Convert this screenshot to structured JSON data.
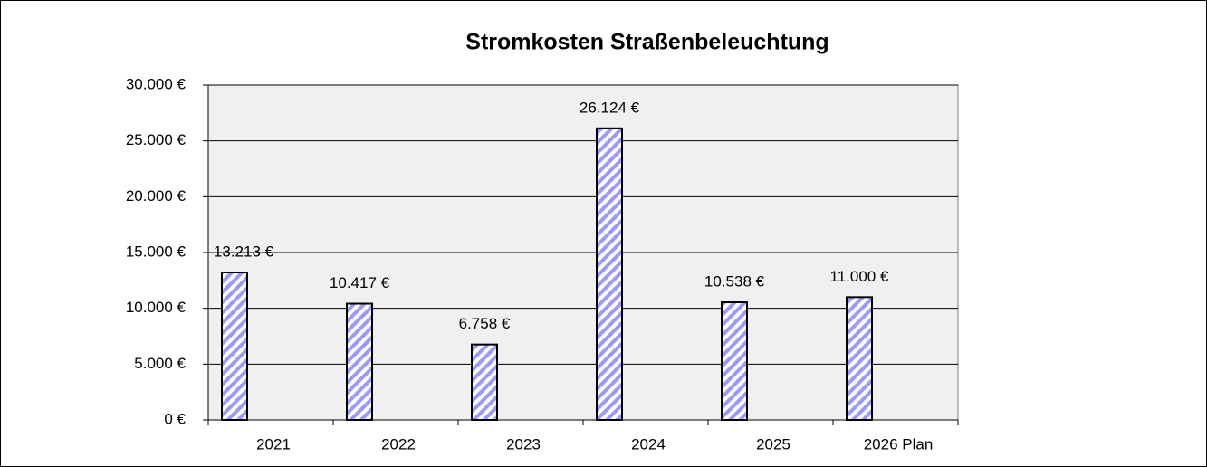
{
  "chart_data": {
    "type": "bar",
    "title": "Stromkosten Straßenbeleuchtung",
    "categories": [
      "2021",
      "2022",
      "2023",
      "2024",
      "2025",
      "2026 Plan"
    ],
    "values": [
      13213,
      10417,
      6758,
      26124,
      10538,
      11000
    ],
    "value_labels": [
      "13.213 €",
      "10.417 €",
      "6.758 €",
      "26.124 €",
      "10.538 €",
      "11.000 €"
    ],
    "color": "#9999ff",
    "ylim": [
      0,
      30000
    ],
    "yticks": [
      {
        "value": 0,
        "label": "0 €"
      },
      {
        "value": 5000,
        "label": "5.000 €"
      },
      {
        "value": 10000,
        "label": "10.000 €"
      },
      {
        "value": 15000,
        "label": "15.000 €"
      },
      {
        "value": 20000,
        "label": "20.000 €"
      },
      {
        "value": 25000,
        "label": "25.000 €"
      },
      {
        "value": 30000,
        "label": "30.000 €"
      }
    ],
    "grid": true
  }
}
